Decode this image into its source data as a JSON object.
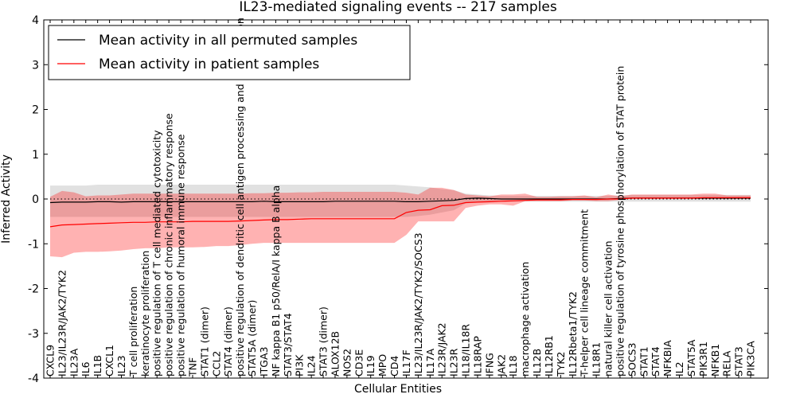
{
  "chart_data": {
    "type": "line",
    "title": "IL23-mediated signaling events -- 217 samples",
    "xlabel": "Cellular Entities",
    "ylabel": "Inferred Activity",
    "ylim": [
      -4,
      4
    ],
    "yticks": [
      4,
      3,
      2,
      1,
      0,
      -1,
      -2,
      -3,
      -4
    ],
    "legend_location": "top-left",
    "categories": [
      "CXCL9",
      "IL23/IL23R/JAK2/TYK2",
      "IL23A",
      "IL6",
      "IL1B",
      "CXCL1",
      "IL23",
      "T cell proliferation",
      "keratinocyte proliferation",
      "positive regulation of T cell mediated cytotoxicity",
      "positive regulation of chronic inflammatory response",
      "positive regulation of humoral immune response",
      "TNF",
      "STAT1 (dimer)",
      "CCL2",
      "STAT4 (dimer)",
      "positive regulation of dendritic cell antigen processing and presentation",
      "STAT5A (dimer)",
      "ITGA3",
      "NF kappa B1 p50/RelA/I kappa B alpha",
      "STAT3/STAT4",
      "PI3K",
      "IL24",
      "STAT3 (dimer)",
      "ALOX12B",
      "NOS2",
      "CD3E",
      "IL19",
      "MPO",
      "CD4",
      "IL17F",
      "IL23/IL23R/JAK2/TYK2/SOCS3",
      "IL17A",
      "IL23R/JAK2",
      "IL23R",
      "IL18/IL18R",
      "IL18RAP",
      "IFNG",
      "JAK2",
      "IL18",
      "macrophage activation",
      "IL12B",
      "IL12RB1",
      "TYK2",
      "IL12Rbeta1/TYK2",
      "T-helper cell lineage commitment",
      "IL18R1",
      "natural killer cell activation",
      "positive regulation of tyrosine phosphorylation of STAT protein",
      "SOCS3",
      "STAT1",
      "STAT4",
      "NFKBIA",
      "IL2",
      "STAT5A",
      "PIK3R1",
      "NFKB1",
      "RELA",
      "STAT3",
      "PIK3CA"
    ],
    "series": [
      {
        "name": "Mean activity in all permuted samples",
        "color": "#000000",
        "values": [
          -0.08,
          -0.07,
          -0.07,
          -0.07,
          -0.06,
          -0.06,
          -0.07,
          -0.06,
          -0.06,
          -0.06,
          -0.06,
          -0.06,
          -0.06,
          -0.06,
          -0.06,
          -0.06,
          -0.06,
          -0.06,
          -0.05,
          -0.06,
          -0.06,
          -0.06,
          -0.06,
          -0.06,
          -0.05,
          -0.05,
          -0.05,
          -0.05,
          -0.05,
          -0.05,
          -0.06,
          -0.06,
          -0.05,
          -0.04,
          -0.03,
          0.01,
          0.02,
          0.01,
          0.0,
          0.0,
          0.0,
          0.0,
          0.0,
          0.0,
          0.0,
          0.0,
          0.0,
          0.0,
          0.01,
          0.02,
          0.02,
          0.02,
          0.02,
          0.02,
          0.02,
          0.02,
          0.02,
          0.02,
          0.02,
          0.02
        ],
        "band_low": [
          -0.4,
          -0.4,
          -0.4,
          -0.4,
          -0.4,
          -0.4,
          -0.4,
          -0.4,
          -0.4,
          -0.4,
          -0.4,
          -0.4,
          -0.4,
          -0.4,
          -0.4,
          -0.4,
          -0.4,
          -0.4,
          -0.4,
          -0.4,
          -0.4,
          -0.4,
          -0.4,
          -0.4,
          -0.4,
          -0.4,
          -0.4,
          -0.4,
          -0.4,
          -0.4,
          -0.4,
          -0.38,
          -0.35,
          -0.3,
          -0.25,
          -0.1,
          -0.08,
          -0.08,
          -0.06,
          -0.06,
          -0.06,
          -0.06,
          -0.06,
          -0.06,
          -0.06,
          -0.06,
          -0.06,
          -0.06,
          -0.06,
          -0.06,
          -0.06,
          -0.06,
          -0.06,
          -0.06,
          -0.06,
          -0.06,
          -0.06,
          -0.06,
          -0.06,
          -0.06
        ],
        "band_high": [
          0.3,
          0.3,
          0.3,
          0.3,
          0.32,
          0.32,
          0.32,
          0.32,
          0.32,
          0.32,
          0.32,
          0.32,
          0.32,
          0.32,
          0.32,
          0.32,
          0.32,
          0.32,
          0.32,
          0.32,
          0.32,
          0.32,
          0.32,
          0.32,
          0.32,
          0.32,
          0.32,
          0.32,
          0.32,
          0.32,
          0.3,
          0.28,
          0.26,
          0.22,
          0.2,
          0.12,
          0.1,
          0.08,
          0.07,
          0.07,
          0.07,
          0.07,
          0.07,
          0.07,
          0.07,
          0.07,
          0.07,
          0.07,
          0.08,
          0.09,
          0.09,
          0.09,
          0.09,
          0.09,
          0.09,
          0.09,
          0.09,
          0.09,
          0.09,
          0.09
        ]
      },
      {
        "name": "Mean activity in patient samples",
        "color": "#ff0000",
        "values": [
          -0.62,
          -0.58,
          -0.57,
          -0.56,
          -0.55,
          -0.54,
          -0.53,
          -0.52,
          -0.52,
          -0.51,
          -0.51,
          -0.51,
          -0.5,
          -0.5,
          -0.5,
          -0.5,
          -0.49,
          -0.48,
          -0.47,
          -0.46,
          -0.46,
          -0.45,
          -0.44,
          -0.44,
          -0.44,
          -0.44,
          -0.44,
          -0.44,
          -0.44,
          -0.44,
          -0.3,
          -0.25,
          -0.24,
          -0.15,
          -0.14,
          -0.08,
          -0.07,
          -0.06,
          -0.05,
          -0.04,
          -0.03,
          -0.02,
          -0.02,
          -0.02,
          -0.01,
          -0.01,
          -0.01,
          0.0,
          0.0,
          0.02,
          0.02,
          0.02,
          0.02,
          0.02,
          0.02,
          0.03,
          0.03,
          0.03,
          0.03,
          0.03
        ],
        "band_low": [
          -1.28,
          -1.3,
          -1.2,
          -1.18,
          -1.18,
          -1.17,
          -1.15,
          -1.12,
          -1.1,
          -1.1,
          -1.08,
          -1.08,
          -1.08,
          -1.07,
          -1.05,
          -1.05,
          -1.03,
          -1.0,
          -0.98,
          -0.98,
          -0.98,
          -0.98,
          -0.98,
          -0.98,
          -0.98,
          -0.98,
          -0.98,
          -0.98,
          -0.98,
          -0.98,
          -0.8,
          -0.5,
          -0.5,
          -0.5,
          -0.5,
          -0.2,
          -0.15,
          -0.12,
          -0.12,
          -0.15,
          -0.05,
          -0.05,
          -0.05,
          -0.05,
          -0.03,
          -0.03,
          -0.05,
          -0.05,
          -0.02,
          0.0,
          0.0,
          0.0,
          0.0,
          0.0,
          0.0,
          0.0,
          0.0,
          0.0,
          0.0,
          0.0
        ],
        "band_high": [
          0.05,
          0.18,
          0.15,
          0.06,
          0.08,
          0.08,
          0.1,
          0.12,
          0.12,
          0.12,
          0.12,
          0.12,
          0.12,
          0.12,
          0.12,
          0.12,
          0.12,
          0.13,
          0.13,
          0.14,
          0.14,
          0.15,
          0.15,
          0.16,
          0.16,
          0.16,
          0.16,
          0.16,
          0.16,
          0.16,
          0.14,
          0.1,
          0.25,
          0.25,
          0.2,
          0.1,
          0.08,
          0.06,
          0.1,
          0.1,
          0.12,
          0.05,
          0.05,
          0.06,
          0.06,
          0.08,
          0.04,
          0.1,
          0.06,
          0.1,
          0.1,
          0.1,
          0.1,
          0.1,
          0.1,
          0.12,
          0.12,
          0.08,
          0.08,
          0.08
        ]
      }
    ],
    "reference_line": {
      "style": "dotted",
      "value": 0.0
    }
  }
}
